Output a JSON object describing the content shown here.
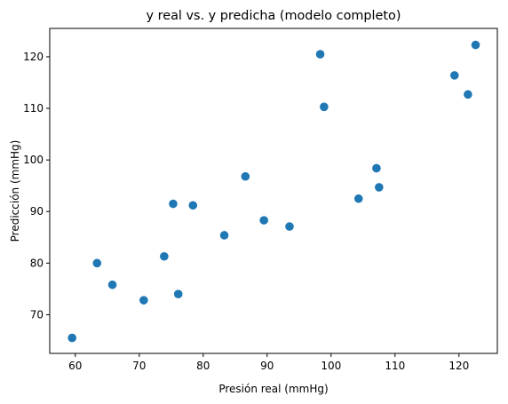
{
  "chart_data": {
    "type": "scatter",
    "title": "y real vs. y predicha (modelo completo)",
    "xlabel": "Presión real (mmHg)",
    "ylabel": "Predicción (mmHg)",
    "xlim": [
      56.0,
      126.0
    ],
    "ylim": [
      62.5,
      125.5
    ],
    "xticks": [
      60,
      70,
      80,
      90,
      100,
      110,
      120
    ],
    "yticks": [
      70,
      80,
      90,
      100,
      110,
      120
    ],
    "xtick_labels": [
      "60",
      "70",
      "80",
      "90",
      "100",
      "110",
      "120"
    ],
    "ytick_labels": [
      "70",
      "80",
      "90",
      "100",
      "110",
      "120"
    ],
    "grid": false,
    "marker_color": "#1f77b4",
    "points": [
      {
        "x": 59.5,
        "y": 65.5
      },
      {
        "x": 63.4,
        "y": 80.0
      },
      {
        "x": 65.8,
        "y": 75.8
      },
      {
        "x": 70.7,
        "y": 72.8
      },
      {
        "x": 73.9,
        "y": 81.3
      },
      {
        "x": 75.3,
        "y": 91.5
      },
      {
        "x": 76.1,
        "y": 74.0
      },
      {
        "x": 78.4,
        "y": 91.2
      },
      {
        "x": 83.3,
        "y": 85.4
      },
      {
        "x": 86.6,
        "y": 96.8
      },
      {
        "x": 89.5,
        "y": 88.3
      },
      {
        "x": 93.5,
        "y": 87.1
      },
      {
        "x": 98.3,
        "y": 120.5
      },
      {
        "x": 98.9,
        "y": 110.3
      },
      {
        "x": 104.3,
        "y": 92.5
      },
      {
        "x": 107.1,
        "y": 98.4
      },
      {
        "x": 107.5,
        "y": 94.7
      },
      {
        "x": 119.3,
        "y": 116.4
      },
      {
        "x": 121.4,
        "y": 112.7
      },
      {
        "x": 122.6,
        "y": 122.3
      }
    ]
  }
}
